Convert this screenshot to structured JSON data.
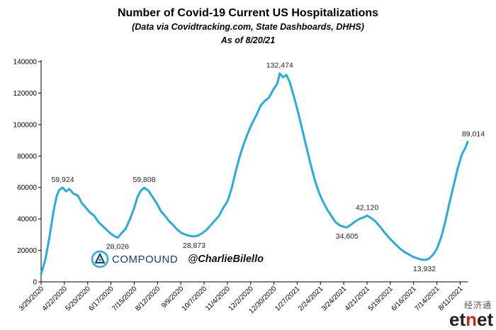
{
  "title": "Number of Covid-19 Current US Hospitalizations",
  "subtitle": "(Data via Covidtracking.com, State Dashboards,  DHHS)",
  "as_of": "As of 8/20/21",
  "brand": {
    "name": "COMPOUND",
    "handle": "@CharlieBilello",
    "logo_icon": "compound-logo-icon",
    "color": "#163d6b"
  },
  "watermark": {
    "cn": "经济通",
    "en_prefix": "et",
    "en_accent": "n",
    "en_suffix": "et"
  },
  "chart_data": {
    "type": "line",
    "line_color": "#29abe2",
    "ylim": [
      0,
      140000
    ],
    "y_ticks": [
      0,
      20000,
      40000,
      60000,
      80000,
      100000,
      120000,
      140000
    ],
    "x_tick_labels": [
      "3/25/2020",
      "4/22/2020",
      "5/20/2020",
      "6/17/2020",
      "7/15/2020",
      "8/12/2020",
      "9/9/2020",
      "10/7/2020",
      "11/4/2020",
      "12/2/2020",
      "12/30/2020",
      "1/27/2021",
      "2/24/2021",
      "3/24/2021",
      "4/21/2021",
      "5/19/2021",
      "6/16/2021",
      "7/14/2021",
      "8/11/2021"
    ],
    "x_tick_step_days": 28,
    "x_start": "2020-03-25",
    "x_end": "2021-08-20",
    "series": [
      {
        "points": [
          [
            "2020-03-25",
            5000
          ],
          [
            "2020-03-30",
            14000
          ],
          [
            "2020-04-04",
            28000
          ],
          [
            "2020-04-09",
            45000
          ],
          [
            "2020-04-13",
            55000
          ],
          [
            "2020-04-16",
            58500
          ],
          [
            "2020-04-20",
            59924
          ],
          [
            "2020-04-24",
            57500
          ],
          [
            "2020-04-28",
            59000
          ],
          [
            "2020-05-03",
            56000
          ],
          [
            "2020-05-08",
            55000
          ],
          [
            "2020-05-13",
            50000
          ],
          [
            "2020-05-18",
            47000
          ],
          [
            "2020-05-23",
            44000
          ],
          [
            "2020-05-28",
            42000
          ],
          [
            "2020-06-02",
            38000
          ],
          [
            "2020-06-07",
            35500
          ],
          [
            "2020-06-12",
            33000
          ],
          [
            "2020-06-17",
            30500
          ],
          [
            "2020-06-22",
            28800
          ],
          [
            "2020-06-25",
            28026
          ],
          [
            "2020-06-30",
            31000
          ],
          [
            "2020-07-05",
            34000
          ],
          [
            "2020-07-10",
            40000
          ],
          [
            "2020-07-15",
            47000
          ],
          [
            "2020-07-19",
            54000
          ],
          [
            "2020-07-23",
            58000
          ],
          [
            "2020-07-27",
            59808
          ],
          [
            "2020-08-01",
            58000
          ],
          [
            "2020-08-06",
            54000
          ],
          [
            "2020-08-11",
            50000
          ],
          [
            "2020-08-16",
            45000
          ],
          [
            "2020-08-21",
            42000
          ],
          [
            "2020-08-26",
            38500
          ],
          [
            "2020-08-31",
            36000
          ],
          [
            "2020-09-05",
            33000
          ],
          [
            "2020-09-10",
            31000
          ],
          [
            "2020-09-15",
            30000
          ],
          [
            "2020-09-20",
            29200
          ],
          [
            "2020-09-25",
            28873
          ],
          [
            "2020-09-30",
            29500
          ],
          [
            "2020-10-05",
            31000
          ],
          [
            "2020-10-10",
            33000
          ],
          [
            "2020-10-15",
            36000
          ],
          [
            "2020-10-20",
            39000
          ],
          [
            "2020-10-25",
            42000
          ],
          [
            "2020-10-30",
            47000
          ],
          [
            "2020-11-04",
            51000
          ],
          [
            "2020-11-09",
            59000
          ],
          [
            "2020-11-14",
            70000
          ],
          [
            "2020-11-19",
            80000
          ],
          [
            "2020-11-24",
            88000
          ],
          [
            "2020-11-29",
            95000
          ],
          [
            "2020-12-04",
            101000
          ],
          [
            "2020-12-09",
            106000
          ],
          [
            "2020-12-14",
            112000
          ],
          [
            "2020-12-19",
            115000
          ],
          [
            "2020-12-24",
            117000
          ],
          [
            "2020-12-29",
            122000
          ],
          [
            "2021-01-03",
            126000
          ],
          [
            "2021-01-06",
            132474
          ],
          [
            "2021-01-10",
            130000
          ],
          [
            "2021-01-14",
            131500
          ],
          [
            "2021-01-18",
            127000
          ],
          [
            "2021-01-23",
            118000
          ],
          [
            "2021-01-28",
            108000
          ],
          [
            "2021-02-02",
            97000
          ],
          [
            "2021-02-07",
            86000
          ],
          [
            "2021-02-12",
            75000
          ],
          [
            "2021-02-17",
            65000
          ],
          [
            "2021-02-22",
            57000
          ],
          [
            "2021-02-27",
            51000
          ],
          [
            "2021-03-04",
            46000
          ],
          [
            "2021-03-09",
            42000
          ],
          [
            "2021-03-14",
            38000
          ],
          [
            "2021-03-19",
            36000
          ],
          [
            "2021-03-24",
            35000
          ],
          [
            "2021-03-28",
            34605
          ],
          [
            "2021-04-02",
            36500
          ],
          [
            "2021-04-07",
            38500
          ],
          [
            "2021-04-12",
            40000
          ],
          [
            "2021-04-17",
            41000
          ],
          [
            "2021-04-21",
            42120
          ],
          [
            "2021-04-26",
            40500
          ],
          [
            "2021-05-01",
            38500
          ],
          [
            "2021-05-06",
            35500
          ],
          [
            "2021-05-11",
            32000
          ],
          [
            "2021-05-16",
            29000
          ],
          [
            "2021-05-21",
            26000
          ],
          [
            "2021-05-26",
            23500
          ],
          [
            "2021-05-31",
            21000
          ],
          [
            "2021-06-05",
            19000
          ],
          [
            "2021-06-10",
            17500
          ],
          [
            "2021-06-15",
            16000
          ],
          [
            "2021-06-20",
            15000
          ],
          [
            "2021-06-25",
            14200
          ],
          [
            "2021-06-29",
            13932
          ],
          [
            "2021-07-04",
            14500
          ],
          [
            "2021-07-09",
            17000
          ],
          [
            "2021-07-14",
            21000
          ],
          [
            "2021-07-19",
            28000
          ],
          [
            "2021-07-24",
            38000
          ],
          [
            "2021-07-29",
            50000
          ],
          [
            "2021-08-03",
            61000
          ],
          [
            "2021-08-08",
            72000
          ],
          [
            "2021-08-13",
            81000
          ],
          [
            "2021-08-17",
            85000
          ],
          [
            "2021-08-20",
            89014
          ]
        ]
      }
    ],
    "annotations": [
      {
        "x": "2020-04-20",
        "y": 59924,
        "text": "59,924",
        "pos": "above"
      },
      {
        "x": "2020-06-25",
        "y": 28026,
        "text": "28,026",
        "pos": "below"
      },
      {
        "x": "2020-07-27",
        "y": 59808,
        "text": "59,808",
        "pos": "above"
      },
      {
        "x": "2020-09-25",
        "y": 28873,
        "text": "28,873",
        "pos": "below"
      },
      {
        "x": "2021-01-06",
        "y": 132474,
        "text": "132,474",
        "pos": "above"
      },
      {
        "x": "2021-03-28",
        "y": 34605,
        "text": "34,605",
        "pos": "below"
      },
      {
        "x": "2021-04-21",
        "y": 42120,
        "text": "42,120",
        "pos": "above"
      },
      {
        "x": "2021-06-29",
        "y": 13932,
        "text": "13,932",
        "pos": "below"
      },
      {
        "x": "2021-08-20",
        "y": 89014,
        "text": "89,014",
        "pos": "above-left"
      }
    ]
  }
}
